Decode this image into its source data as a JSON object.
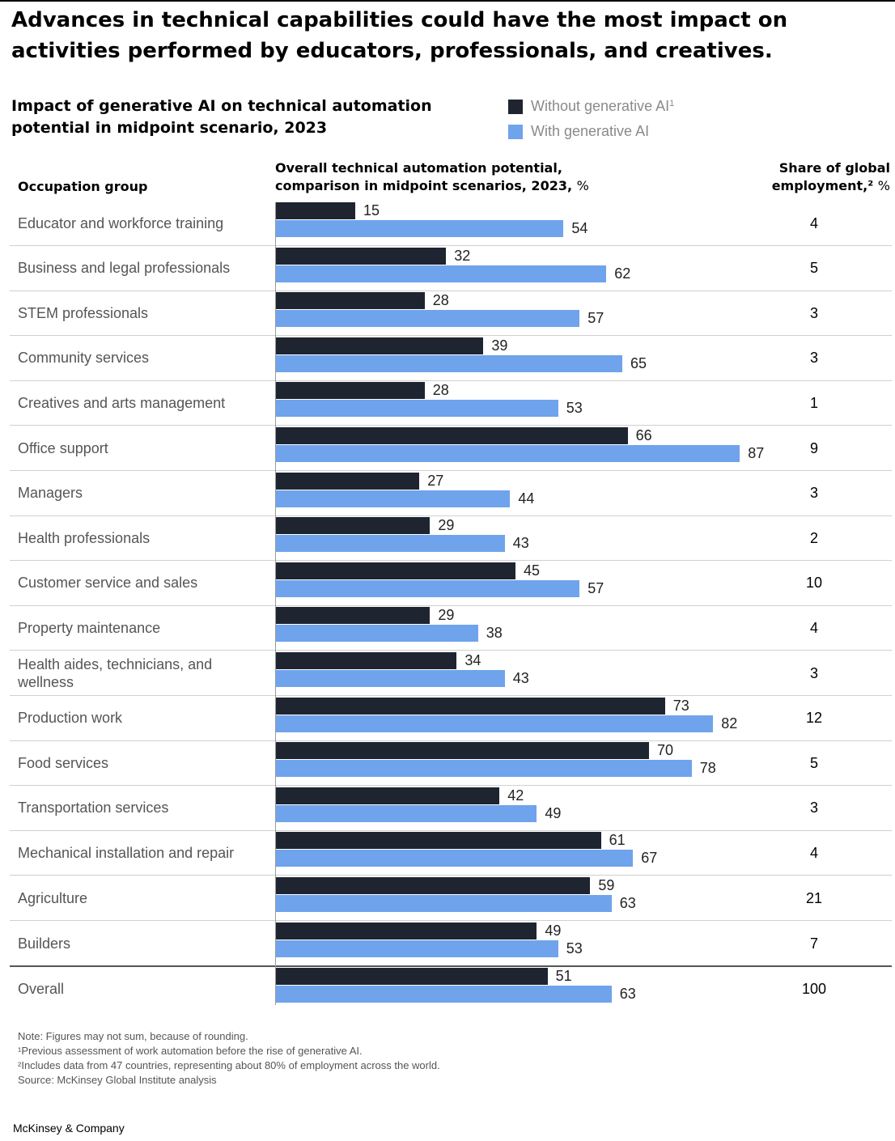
{
  "headline": "Advances in technical capabilities could have the most impact on activities performed by educators, professionals, and creatives.",
  "subtitle": "Impact of generative AI on technical automation potential in midpoint scenario, 2023",
  "legend": {
    "without_label": "Without generative AI",
    "without_sup": "1",
    "with_label": "With generative AI"
  },
  "colors": {
    "without": "#1e2530",
    "with": "#6fa3ec"
  },
  "columns": {
    "occupation": "Occupation group",
    "chart": "Overall technical automation potential, comparison in midpoint scenarios, 2023,",
    "chart_unit": "%",
    "share": "Share of global employment,²",
    "share_unit": "%"
  },
  "chart_data": {
    "type": "bar",
    "orientation": "horizontal",
    "xlim": [
      0,
      100
    ],
    "categories": [
      "Educator and workforce training",
      "Business and legal professionals",
      "STEM professionals",
      "Community services",
      "Creatives and arts management",
      "Office support",
      "Managers",
      "Health professionals",
      "Customer service and sales",
      "Property maintenance",
      "Health aides, technicians, and wellness",
      "Production work",
      "Food services",
      "Transportation services",
      "Mechanical installation and repair",
      "Agriculture",
      "Builders",
      "Overall"
    ],
    "series": [
      {
        "name": "Without generative AI",
        "values": [
          15,
          32,
          28,
          39,
          28,
          66,
          27,
          29,
          45,
          29,
          34,
          73,
          70,
          42,
          61,
          59,
          49,
          51
        ]
      },
      {
        "name": "With generative AI",
        "values": [
          54,
          62,
          57,
          65,
          53,
          87,
          44,
          43,
          57,
          38,
          43,
          82,
          78,
          49,
          67,
          63,
          53,
          63
        ]
      }
    ],
    "share_of_global_employment": [
      4,
      5,
      3,
      3,
      1,
      9,
      3,
      2,
      10,
      4,
      3,
      12,
      5,
      3,
      4,
      21,
      7,
      100
    ]
  },
  "notes": [
    "Note: Figures may not sum, because of rounding.",
    "¹Previous assessment of work automation before the rise of generative AI.",
    "²Includes data from 47 countries, representing about 80% of employment across the world.",
    "Source: McKinsey Global Institute analysis"
  ],
  "brand": "McKinsey & Company"
}
